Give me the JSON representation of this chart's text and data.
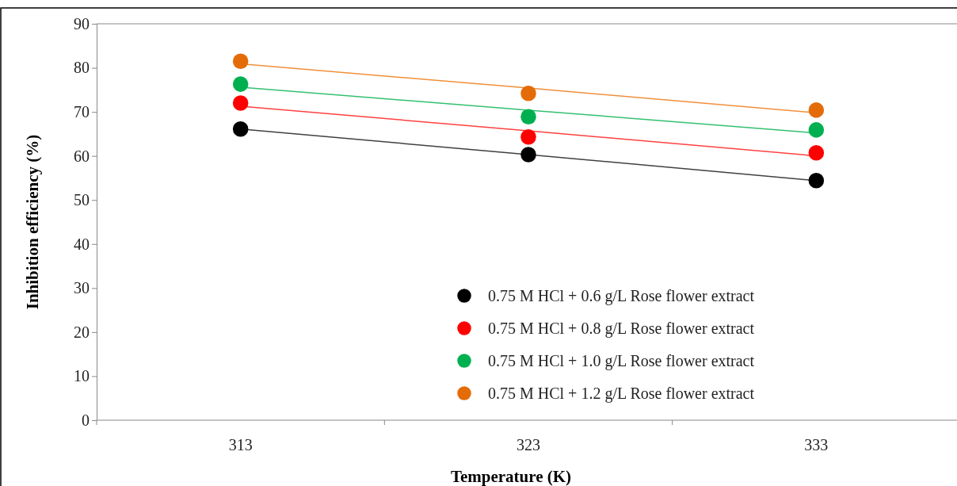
{
  "chart_data": {
    "type": "scatter",
    "xlabel": "Temperature (K)",
    "ylabel": "Inhibition  efficiency (%)",
    "categories": [
      "313",
      "323",
      "333"
    ],
    "ylim": [
      0,
      90
    ],
    "yticks": [
      0,
      10,
      20,
      30,
      40,
      50,
      60,
      70,
      80,
      90
    ],
    "grid": false,
    "legend": "bottom right",
    "marker": "circle",
    "series": [
      {
        "type": "line",
        "color": "#404040",
        "values": [
          66.1,
          60.3,
          54.4
        ],
        "marker": "none",
        "line_style": "solid"
      },
      {
        "type": "line",
        "color": "#ff4040",
        "values": [
          71.3,
          65.7,
          60.0
        ],
        "marker": "none",
        "line_style": "solid"
      },
      {
        "type": "line",
        "color": "#33c070",
        "values": [
          75.6,
          70.4,
          65.2
        ],
        "marker": "none",
        "line_style": "solid"
      },
      {
        "type": "line",
        "color": "#f0903a",
        "values": [
          80.9,
          75.4,
          69.8
        ],
        "marker": "none",
        "line_style": "solid"
      },
      {
        "name": "0.75 M HCl + 0.6 g/L Rose flower extract",
        "color": "#000000",
        "values": [
          66.1,
          60.3,
          54.4
        ]
      },
      {
        "name": "0.75 M HCl + 0.8 g/L Rose flower extract",
        "color": "#ff0000",
        "values": [
          72.0,
          64.3,
          60.7
        ]
      },
      {
        "name": "0.75 M HCl + 1.0 g/L Rose flower extract",
        "color": "#00b050",
        "values": [
          76.3,
          68.9,
          65.9
        ]
      },
      {
        "name": "0.75 M HCl + 1.2 g/L Rose flower extract",
        "color": "#e36c09",
        "values": [
          81.5,
          74.2,
          70.4
        ]
      }
    ]
  }
}
